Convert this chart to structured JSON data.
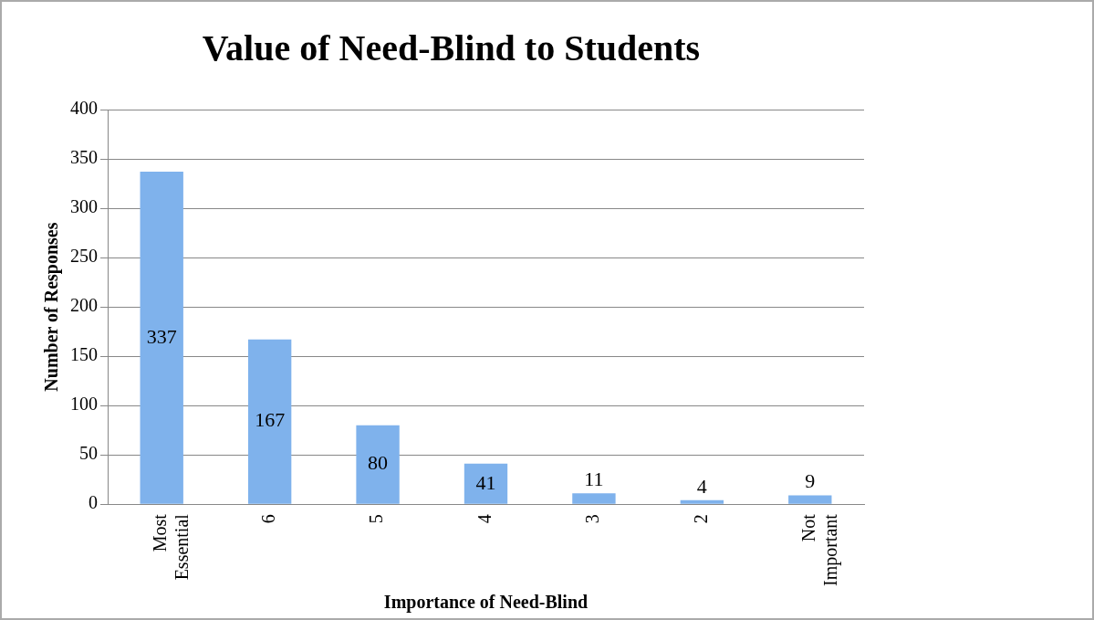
{
  "chart_data": {
    "type": "bar",
    "title": "Value of Need-Blind to Students",
    "xlabel": "Importance of Need-Blind",
    "ylabel": "Number of Responses",
    "categories": [
      "Most Essential",
      "6",
      "5",
      "4",
      "3",
      "2",
      "Not Important"
    ],
    "values": [
      337,
      167,
      80,
      41,
      11,
      4,
      9
    ],
    "color": "#7fb2ec",
    "ylim": [
      0,
      400
    ],
    "yticks": [
      0,
      50,
      100,
      150,
      200,
      250,
      300,
      350,
      400
    ],
    "grid": "y",
    "data_labels": true,
    "legend": false
  }
}
